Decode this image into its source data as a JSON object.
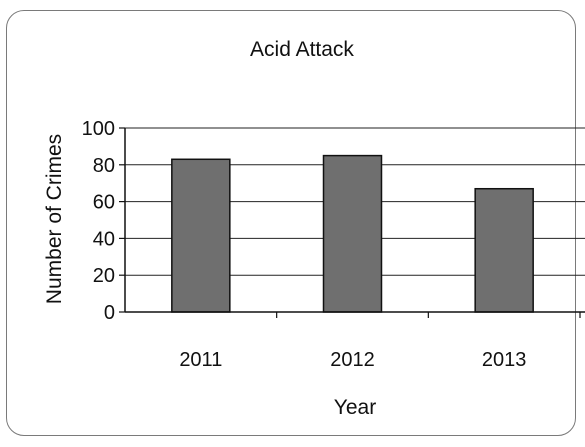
{
  "chart_data": {
    "type": "bar",
    "title": "Acid Attack",
    "xlabel": "Year",
    "ylabel": "Number of Crimes",
    "categories": [
      "2011",
      "2012",
      "2013"
    ],
    "values": [
      83,
      85,
      67
    ],
    "ylim": [
      0,
      100
    ],
    "yticks": [
      "0",
      "20",
      "40",
      "60",
      "80",
      "100"
    ],
    "grid": true,
    "legend": "none",
    "colors": {
      "bar": "#6f6f6f",
      "bar_edge": "#111111",
      "grid": "#222222"
    }
  }
}
